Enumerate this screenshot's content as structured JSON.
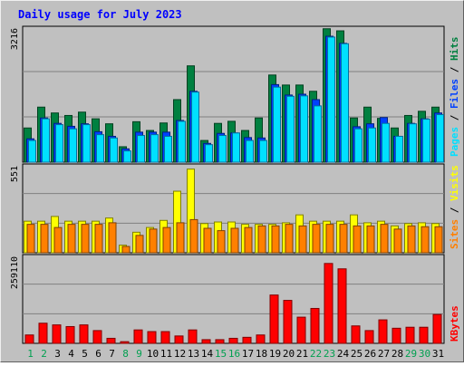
{
  "title": "Daily usage for July 2023",
  "legend": {
    "hits": "Hits",
    "files": "Files",
    "pages": "Pages",
    "visits": "Visits",
    "sites": "Sites",
    "kbytes": "KBytes",
    "sep1": "/",
    "sep2": "/",
    "sep3": "/"
  },
  "colors": {
    "background": "#c0c0c0",
    "plot": "#ffffff",
    "title": "#0000ff",
    "hits": "#008040",
    "files": "#0040ff",
    "pages": "#00e0ff",
    "visits": "#ffff00",
    "sites": "#ff8000",
    "kbytes": "#ff0000",
    "weekday": "#000000",
    "weekend": "#00a050"
  },
  "chart_data": [
    {
      "type": "bar",
      "panel": "hits_files_pages",
      "ymax": 3216,
      "ymax_label": "3216",
      "categories": [
        "1",
        "2",
        "3",
        "4",
        "5",
        "6",
        "7",
        "8",
        "9",
        "10",
        "11",
        "12",
        "13",
        "14",
        "15",
        "16",
        "17",
        "18",
        "19",
        "20",
        "21",
        "22",
        "23",
        "24",
        "25",
        "26",
        "27",
        "28",
        "29",
        "30",
        "31"
      ],
      "series": [
        {
          "name": "Hits",
          "values": [
            820,
            1320,
            1180,
            1120,
            1200,
            1040,
            920,
            370,
            970,
            760,
            940,
            1500,
            2310,
            520,
            930,
            980,
            760,
            1060,
            2090,
            1850,
            1850,
            1700,
            3200,
            3150,
            1060,
            1320,
            1050,
            820,
            1120,
            1220,
            1320
          ]
        },
        {
          "name": "Files",
          "values": [
            560,
            1060,
            930,
            860,
            920,
            730,
            620,
            320,
            720,
            720,
            720,
            1000,
            1700,
            450,
            690,
            700,
            590,
            580,
            1860,
            1610,
            1630,
            1500,
            3020,
            2850,
            850,
            920,
            1070,
            620,
            930,
            1040,
            1180
          ]
        },
        {
          "name": "Pages",
          "values": [
            520,
            1040,
            900,
            800,
            900,
            660,
            580,
            270,
            640,
            660,
            620,
            980,
            1680,
            420,
            640,
            700,
            520,
            520,
            1800,
            1580,
            1590,
            1350,
            3000,
            2840,
            800,
            820,
            930,
            620,
            920,
            1030,
            1140
          ]
        }
      ]
    },
    {
      "type": "bar",
      "panel": "visits_sites",
      "ymax": 551,
      "ymax_label": "551",
      "categories": [
        "1",
        "2",
        "3",
        "4",
        "5",
        "6",
        "7",
        "8",
        "9",
        "10",
        "11",
        "12",
        "13",
        "14",
        "15",
        "16",
        "17",
        "18",
        "19",
        "20",
        "21",
        "22",
        "23",
        "24",
        "25",
        "26",
        "27",
        "28",
        "29",
        "30",
        "31"
      ],
      "series": [
        {
          "name": "Visits",
          "values": [
            200,
            200,
            230,
            200,
            200,
            200,
            220,
            48,
            130,
            160,
            205,
            390,
            530,
            185,
            195,
            195,
            180,
            180,
            180,
            190,
            240,
            200,
            200,
            200,
            240,
            190,
            200,
            170,
            185,
            190,
            185
          ]
        },
        {
          "name": "Sites",
          "values": [
            180,
            180,
            160,
            180,
            180,
            180,
            190,
            40,
            110,
            150,
            160,
            190,
            210,
            155,
            140,
            155,
            160,
            170,
            170,
            180,
            170,
            180,
            180,
            180,
            170,
            170,
            180,
            150,
            170,
            165,
            165
          ]
        }
      ]
    },
    {
      "type": "bar",
      "panel": "kbytes",
      "ymax": 259110,
      "ymax_label": "259110",
      "categories": [
        "1",
        "2",
        "3",
        "4",
        "5",
        "6",
        "7",
        "8",
        "9",
        "10",
        "11",
        "12",
        "13",
        "14",
        "15",
        "16",
        "17",
        "18",
        "19",
        "20",
        "21",
        "22",
        "23",
        "24",
        "25",
        "26",
        "27",
        "28",
        "29",
        "30",
        "31"
      ],
      "series": [
        {
          "name": "KBytes",
          "values": [
            25000,
            60000,
            55000,
            50000,
            55000,
            38000,
            15000,
            5000,
            40000,
            35000,
            35000,
            22000,
            40000,
            11000,
            11000,
            15000,
            18000,
            25000,
            144000,
            128000,
            78000,
            104000,
            238000,
            222000,
            52000,
            38000,
            70000,
            45000,
            48000,
            48000,
            86000
          ]
        }
      ]
    }
  ],
  "weekend_days": [
    "1",
    "2",
    "8",
    "9",
    "15",
    "16",
    "22",
    "23",
    "29",
    "30"
  ]
}
